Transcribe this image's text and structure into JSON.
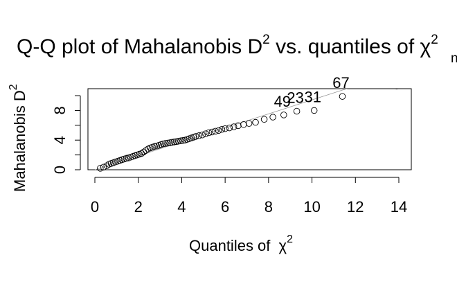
{
  "chart_data": {
    "type": "scatter",
    "title": {
      "main": "Q-Q plot of Mahalanobis D",
      "main_sup": "2",
      "rest": " vs. quantiles of ",
      "symbol": "χ",
      "symbol_sup": "2",
      "symbol_sub": "nvar"
    },
    "xlabel": {
      "text": "Quantiles of ",
      "symbol": "χ",
      "sup": "2"
    },
    "ylabel": {
      "text": "Mahalanobis D",
      "sup": "2"
    },
    "xlim": [
      0,
      14
    ],
    "ylim": [
      0,
      11.5
    ],
    "xticks": [
      0,
      2,
      4,
      6,
      8,
      10,
      12,
      14
    ],
    "yticks": [
      0,
      4,
      8
    ],
    "grid": false,
    "reference_line": {
      "x": [
        0,
        14
      ],
      "y": [
        0,
        13.2
      ]
    },
    "labeled_points": [
      {
        "label": "49",
        "x": 8.7,
        "y": 7.4
      },
      {
        "label": "23",
        "x": 9.3,
        "y": 7.9
      },
      {
        "label": "31",
        "x": 10.1,
        "y": 8.0
      },
      {
        "label": "67",
        "x": 11.4,
        "y": 9.9
      }
    ],
    "points": [
      [
        0.25,
        0.2
      ],
      [
        0.4,
        0.35
      ],
      [
        0.55,
        0.55
      ],
      [
        0.65,
        0.75
      ],
      [
        0.75,
        0.85
      ],
      [
        0.85,
        0.95
      ],
      [
        0.95,
        1.05
      ],
      [
        1.05,
        1.15
      ],
      [
        1.15,
        1.25
      ],
      [
        1.25,
        1.35
      ],
      [
        1.35,
        1.45
      ],
      [
        1.45,
        1.55
      ],
      [
        1.55,
        1.6
      ],
      [
        1.65,
        1.7
      ],
      [
        1.75,
        1.8
      ],
      [
        1.85,
        1.9
      ],
      [
        1.95,
        2.0
      ],
      [
        2.05,
        2.1
      ],
      [
        2.15,
        2.2
      ],
      [
        2.25,
        2.4
      ],
      [
        2.35,
        2.6
      ],
      [
        2.45,
        2.8
      ],
      [
        2.55,
        2.95
      ],
      [
        2.65,
        3.05
      ],
      [
        2.75,
        3.15
      ],
      [
        2.85,
        3.2
      ],
      [
        2.95,
        3.3
      ],
      [
        3.05,
        3.4
      ],
      [
        3.15,
        3.5
      ],
      [
        3.25,
        3.55
      ],
      [
        3.35,
        3.6
      ],
      [
        3.45,
        3.65
      ],
      [
        3.55,
        3.7
      ],
      [
        3.65,
        3.75
      ],
      [
        3.75,
        3.8
      ],
      [
        3.85,
        3.85
      ],
      [
        3.95,
        3.9
      ],
      [
        4.05,
        3.95
      ],
      [
        4.15,
        4.0
      ],
      [
        4.25,
        4.1
      ],
      [
        4.35,
        4.2
      ],
      [
        4.45,
        4.3
      ],
      [
        4.55,
        4.4
      ],
      [
        4.65,
        4.5
      ],
      [
        4.8,
        4.6
      ],
      [
        4.95,
        4.7
      ],
      [
        5.1,
        4.85
      ],
      [
        5.25,
        5.0
      ],
      [
        5.4,
        5.1
      ],
      [
        5.55,
        5.2
      ],
      [
        5.7,
        5.3
      ],
      [
        5.85,
        5.45
      ],
      [
        6.0,
        5.55
      ],
      [
        6.2,
        5.65
      ],
      [
        6.4,
        5.8
      ],
      [
        6.6,
        5.95
      ],
      [
        6.85,
        6.1
      ],
      [
        7.1,
        6.25
      ],
      [
        7.4,
        6.4
      ],
      [
        7.8,
        6.8
      ],
      [
        8.2,
        7.1
      ],
      [
        8.7,
        7.4
      ],
      [
        9.3,
        7.9
      ],
      [
        10.1,
        8.0
      ],
      [
        11.4,
        9.9
      ],
      [
        13.9,
        11.3
      ]
    ]
  }
}
